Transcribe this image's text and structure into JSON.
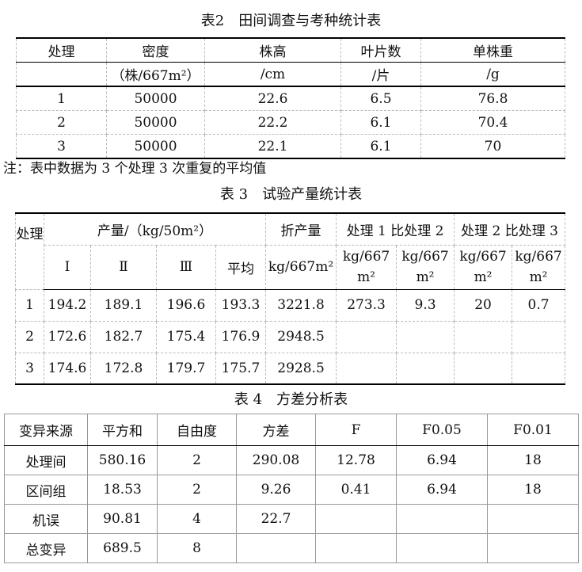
{
  "table2": {
    "title": "表2　田间调查与考种统计表",
    "headers": [
      "处理",
      "密度",
      "株高",
      "叶片数",
      "单株重"
    ],
    "units": [
      "",
      "（株/667m²）",
      "/cm",
      "/片",
      "/g"
    ],
    "rows": [
      [
        "1",
        "50000",
        "22.6",
        "6.5",
        "76.8"
      ],
      [
        "2",
        "50000",
        "22.2",
        "6.1",
        "70.4"
      ],
      [
        "3",
        "50000",
        "22.1",
        "6.1",
        "70"
      ]
    ],
    "note": "注：表中数据为 3 个处理 3 次重复的平均值"
  },
  "table3": {
    "title": "表 3　试验产量统计表",
    "col_treatment": "处理",
    "group_yield": "产量/（kg/50m²）",
    "group_converted": "折产量",
    "group_1vs2": "处理 1 比处理 2",
    "group_2vs3": "处理 2 比处理 3",
    "sub_headers": [
      "Ⅰ",
      "Ⅱ",
      "Ⅲ",
      "平均",
      "kg/667m²",
      "kg/667 m²",
      "kg/667 m²",
      "kg/667 m²",
      "kg/667 m²"
    ],
    "rows": [
      [
        "1",
        "194.2",
        "189.1",
        "196.6",
        "193.3",
        "3221.8",
        "273.3",
        "9.3",
        "20",
        "0.7"
      ],
      [
        "2",
        "172.6",
        "182.7",
        "175.4",
        "176.9",
        "2948.5",
        "",
        "",
        "",
        ""
      ],
      [
        "3",
        "174.6",
        "172.8",
        "179.7",
        "175.7",
        "2928.5",
        "",
        "",
        "",
        ""
      ]
    ]
  },
  "table4": {
    "title": "表 4　方差分析表",
    "headers": [
      "变异来源",
      "平方和",
      "自由度",
      "方差",
      "F",
      "F0.05",
      "F0.01"
    ],
    "rows": [
      [
        "处理间",
        "580.16",
        "2",
        "290.08",
        "12.78",
        "6.94",
        "18"
      ],
      [
        "区间组",
        "18.53",
        "2",
        "9.26",
        "0.41",
        "6.94",
        "18"
      ],
      [
        "机误",
        "90.81",
        "4",
        "22.7",
        "",
        "",
        ""
      ],
      [
        "总变异",
        "689.5",
        "8",
        "",
        "",
        "",
        ""
      ]
    ]
  }
}
